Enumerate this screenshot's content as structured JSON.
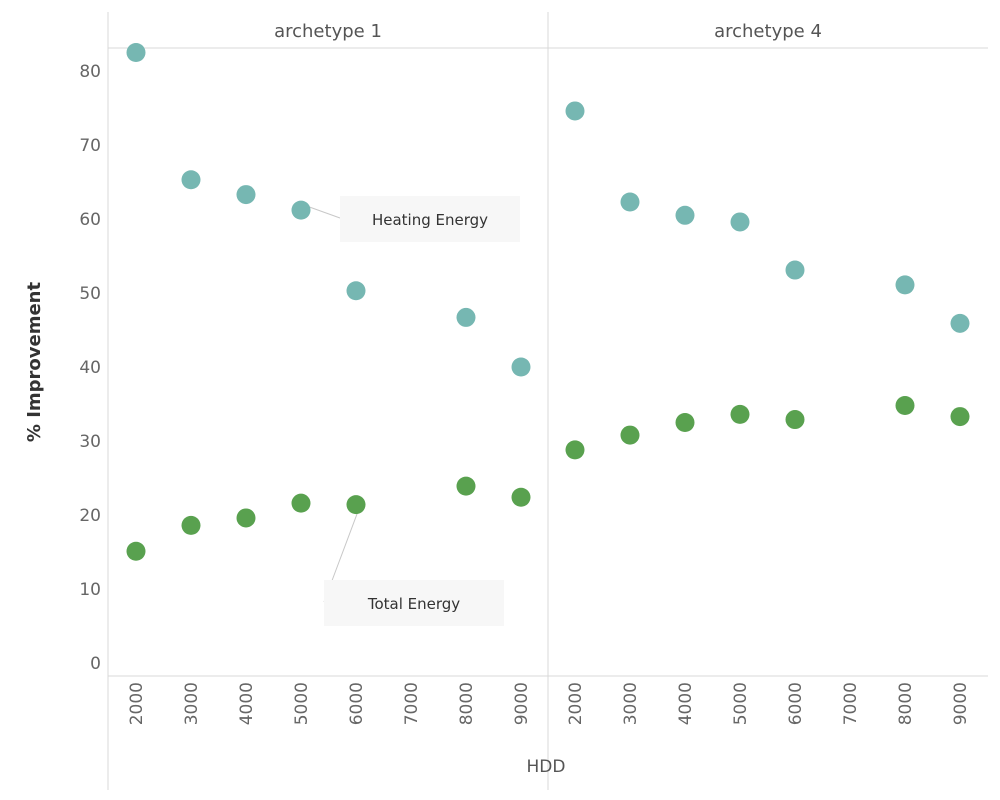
{
  "chart_data": {
    "type": "scatter",
    "xlabel": "HDD",
    "ylabel": "% Improvement",
    "ylim": [
      0,
      85
    ],
    "yticks": [
      0,
      10,
      20,
      30,
      40,
      50,
      60,
      70,
      80
    ],
    "x_categories": [
      "2000",
      "3000",
      "4000",
      "5000",
      "6000",
      "7000",
      "8000",
      "9000"
    ],
    "panels": [
      {
        "title": "archetype 1",
        "series": [
          {
            "name": "Heating Energy",
            "color": "#76b7b2",
            "points": [
              {
                "x": "2000",
                "y": 82.5
              },
              {
                "x": "3000",
                "y": 65.3
              },
              {
                "x": "4000",
                "y": 63.3
              },
              {
                "x": "5000",
                "y": 61.2
              },
              {
                "x": "6000",
                "y": 50.3
              },
              {
                "x": "8000",
                "y": 46.7
              },
              {
                "x": "9000",
                "y": 40.0
              }
            ]
          },
          {
            "name": "Total Energy",
            "color": "#59a14f",
            "points": [
              {
                "x": "2000",
                "y": 15.1
              },
              {
                "x": "3000",
                "y": 18.6
              },
              {
                "x": "4000",
                "y": 19.6
              },
              {
                "x": "5000",
                "y": 21.6
              },
              {
                "x": "6000",
                "y": 21.4
              },
              {
                "x": "8000",
                "y": 23.9
              },
              {
                "x": "9000",
                "y": 22.4
              }
            ]
          }
        ],
        "annotations": [
          {
            "text": "Heating Energy",
            "point_x": "5000",
            "point_y": 61.2
          },
          {
            "text": "Total Energy",
            "point_x": "6000",
            "point_y": 21.4
          }
        ]
      },
      {
        "title": "archetype 4",
        "series": [
          {
            "name": "Heating Energy",
            "color": "#76b7b2",
            "points": [
              {
                "x": "2000",
                "y": 74.6
              },
              {
                "x": "3000",
                "y": 62.3
              },
              {
                "x": "4000",
                "y": 60.5
              },
              {
                "x": "5000",
                "y": 59.6
              },
              {
                "x": "6000",
                "y": 53.1
              },
              {
                "x": "8000",
                "y": 51.1
              },
              {
                "x": "9000",
                "y": 45.9
              }
            ]
          },
          {
            "name": "Total Energy",
            "color": "#59a14f",
            "points": [
              {
                "x": "2000",
                "y": 28.8
              },
              {
                "x": "3000",
                "y": 30.8
              },
              {
                "x": "4000",
                "y": 32.5
              },
              {
                "x": "5000",
                "y": 33.6
              },
              {
                "x": "6000",
                "y": 32.9
              },
              {
                "x": "8000",
                "y": 34.8
              },
              {
                "x": "9000",
                "y": 33.3
              }
            ]
          }
        ],
        "annotations": []
      }
    ]
  }
}
